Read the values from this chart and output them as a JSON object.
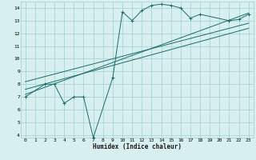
{
  "xlabel": "Humidex (Indice chaleur)",
  "bg_color": "#d7efef",
  "grid_color": "#9ecece",
  "line_color": "#1e6b6b",
  "xlim": [
    -0.5,
    23.5
  ],
  "ylim": [
    3.8,
    14.5
  ],
  "xticks": [
    0,
    1,
    2,
    3,
    4,
    5,
    6,
    7,
    8,
    9,
    10,
    11,
    12,
    13,
    14,
    15,
    16,
    17,
    18,
    19,
    20,
    21,
    22,
    23
  ],
  "yticks": [
    4,
    5,
    6,
    7,
    8,
    9,
    10,
    11,
    12,
    13,
    14
  ],
  "series1_x": [
    0,
    2,
    3,
    4,
    5,
    6,
    7,
    9,
    10,
    11,
    12,
    13,
    14,
    15,
    16,
    17,
    18,
    21,
    22,
    23
  ],
  "series1_y": [
    7.0,
    8.0,
    8.0,
    6.5,
    7.0,
    7.0,
    3.8,
    8.5,
    13.7,
    13.0,
    13.8,
    14.2,
    14.3,
    14.2,
    14.0,
    13.2,
    13.5,
    13.0,
    13.1,
    13.5
  ],
  "line1_x": [
    0,
    23
  ],
  "line1_y": [
    7.2,
    13.6
  ],
  "line2_x": [
    0,
    23
  ],
  "line2_y": [
    7.6,
    12.4
  ],
  "line3_x": [
    0,
    23
  ],
  "line3_y": [
    8.2,
    12.8
  ]
}
